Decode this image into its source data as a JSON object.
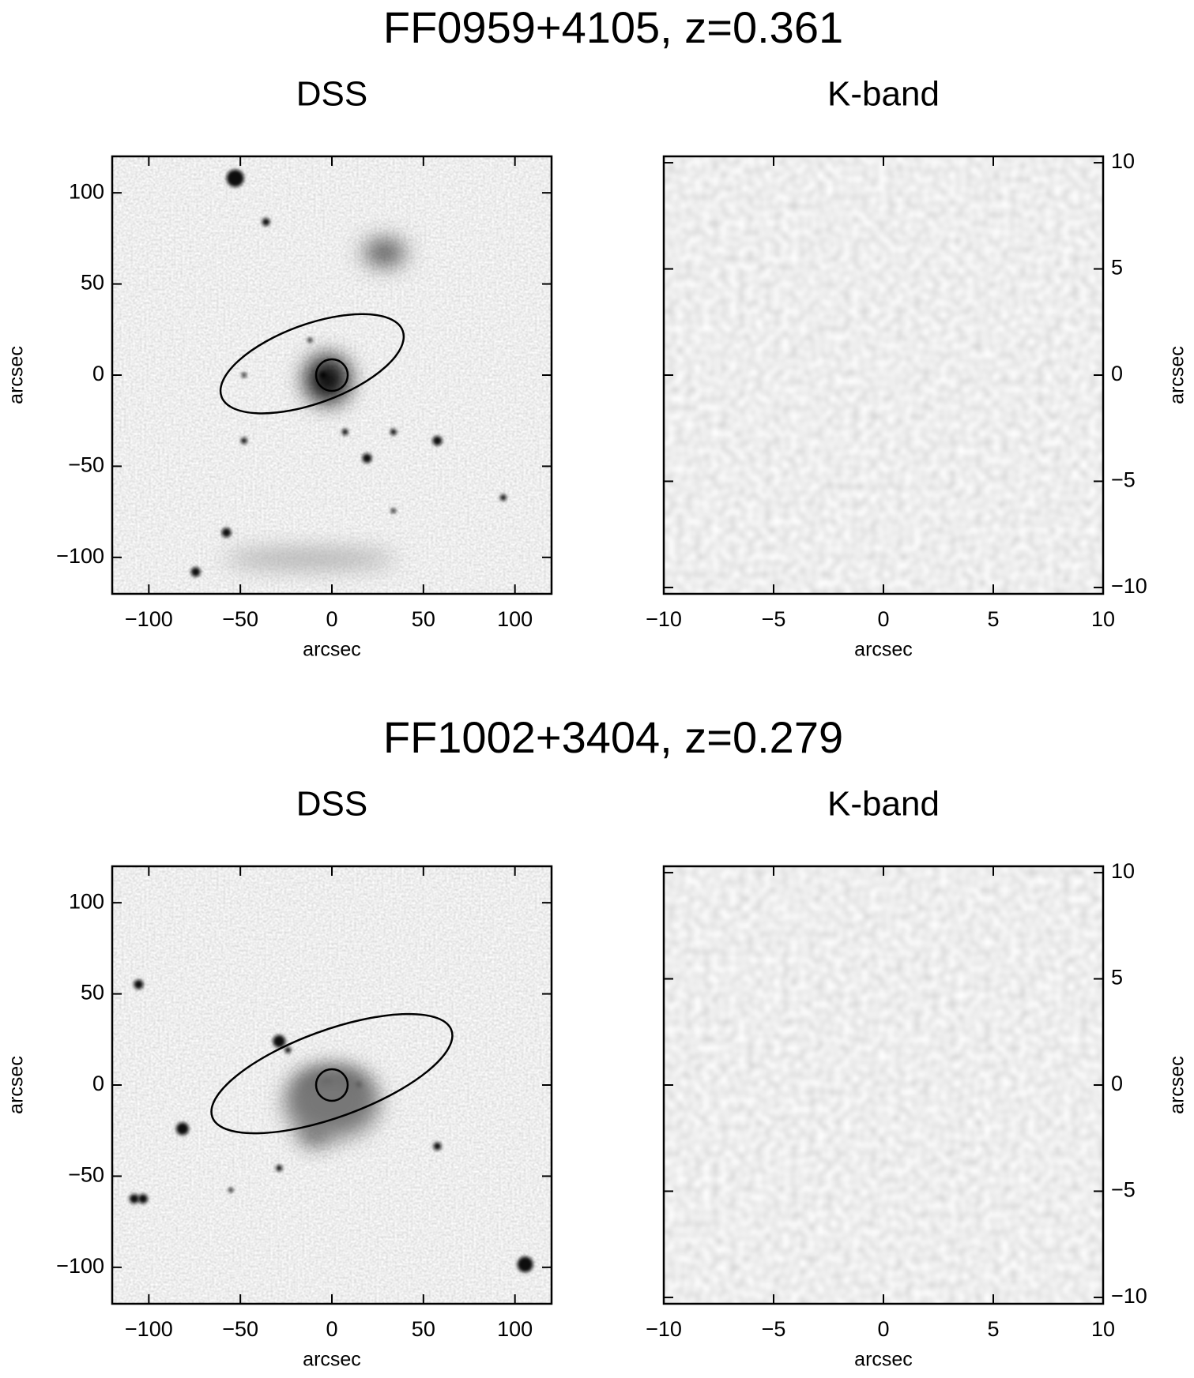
{
  "chart_data": [
    {
      "type": "image",
      "suptitle": "FF0959+4105, z=0.361",
      "title": "DSS",
      "xlabel": "arcsec",
      "ylabel": "arcsec",
      "xlim": [
        -120,
        120
      ],
      "ylim": [
        -120,
        120
      ],
      "xticks": [
        {
          "value": -100,
          "label": "−100"
        },
        {
          "value": -50,
          "label": "−50"
        },
        0,
        50,
        100
      ],
      "yticks": [
        {
          "value": -100,
          "label": "−100"
        },
        {
          "value": -50,
          "label": "−50"
        },
        0,
        50,
        100
      ]
    },
    {
      "type": "image",
      "title": "K-band",
      "xlabel": "arcsec",
      "ylabel": "arcsec",
      "xlim": [
        -10,
        10
      ],
      "ylim": [
        -10.3,
        10.3
      ],
      "xticks": [
        {
          "value": -10,
          "label": "−10"
        },
        {
          "value": -5,
          "label": "−5"
        },
        0,
        5,
        10
      ],
      "yticks": [
        {
          "value": -10,
          "label": "−10"
        },
        {
          "value": -5,
          "label": "−5"
        },
        0,
        5,
        10
      ]
    },
    {
      "type": "image",
      "suptitle": "FF1002+3404, z=0.279",
      "title": "DSS",
      "xlabel": "arcsec",
      "ylabel": "arcsec",
      "xlim": [
        -120,
        120
      ],
      "ylim": [
        -120,
        120
      ],
      "xticks": [
        {
          "value": -100,
          "label": "−100"
        },
        {
          "value": -50,
          "label": "−50"
        },
        0,
        50,
        100
      ],
      "yticks": [
        {
          "value": -100,
          "label": "−100"
        },
        {
          "value": -50,
          "label": "−50"
        },
        0,
        50,
        100
      ]
    },
    {
      "type": "image",
      "title": "K-band",
      "xlabel": "arcsec",
      "ylabel": "arcsec",
      "xlim": [
        -10,
        10
      ],
      "ylim": [
        -10.3,
        10.3
      ],
      "xticks": [
        {
          "value": -10,
          "label": "−10"
        },
        {
          "value": -5,
          "label": "−5"
        },
        0,
        5,
        10
      ],
      "yticks": [
        {
          "value": -10,
          "label": "−10"
        },
        {
          "value": -5,
          "label": "−5"
        },
        0,
        5,
        10
      ]
    }
  ]
}
